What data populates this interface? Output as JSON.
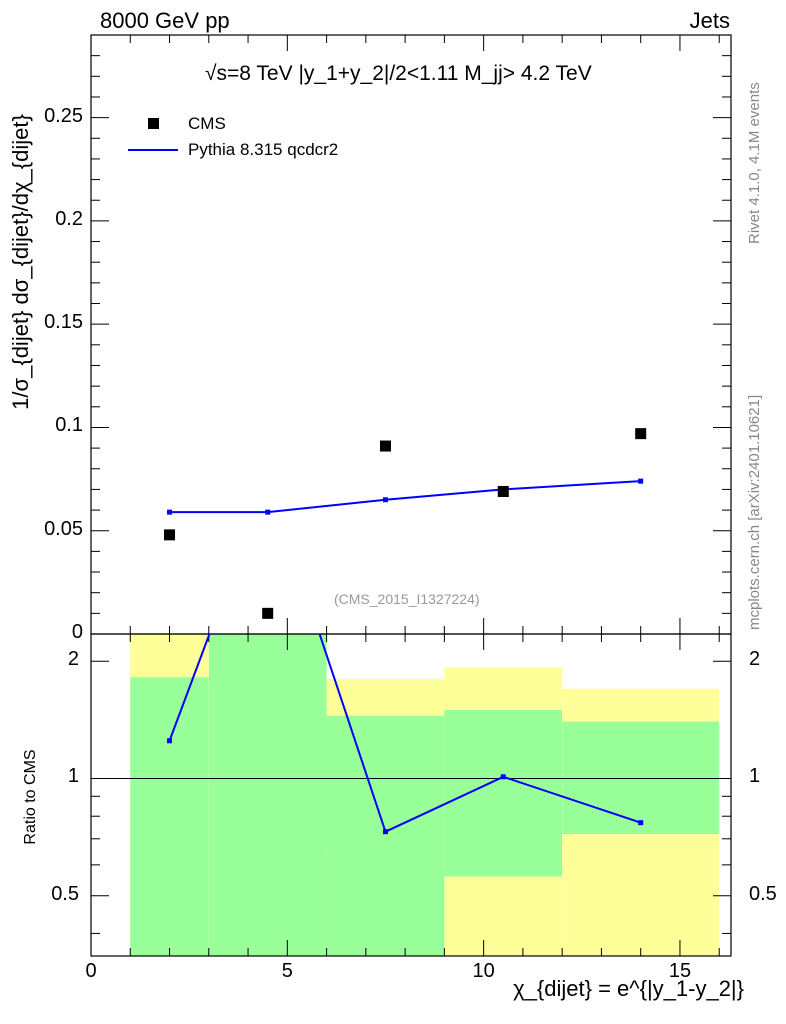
{
  "header": {
    "energy_label": "8000 GeV pp",
    "process_label": "Jets"
  },
  "side_labels": {
    "rivet": "Rivet 4.1.0,  4.1M events",
    "mcplots": "mcplots.cern.ch [arXiv:2401.10621]"
  },
  "plot_title": "√s=8 TeV |y_1+y_2|/2<1.11 M_jj> 4.2 TeV",
  "analysis_label": "(CMS_2015_I1327224)",
  "legend": [
    {
      "name": "CMS",
      "marker": "square",
      "color": "#000000"
    },
    {
      "name": "Pythia 8.315 qcdcr2",
      "marker": "line",
      "color": "#0000ff"
    }
  ],
  "chart_data": [
    {
      "type": "scatter",
      "panel": "main",
      "ylabel": "1/σ_{dijet} dσ_{dijet}/dχ_{dijet}",
      "xlim": [
        0,
        16.3
      ],
      "ylim": [
        0,
        0.29
      ],
      "yticks": [
        0,
        0.05,
        0.1,
        0.15,
        0.2,
        0.25
      ],
      "ytick_labels": [
        "0",
        "0.05",
        "0.1",
        "0.15",
        "0.2",
        "0.25"
      ],
      "series": [
        {
          "name": "CMS",
          "x": [
            2.0,
            4.5,
            7.5,
            10.5,
            14.0
          ],
          "values": [
            0.048,
            0.01,
            0.091,
            0.069,
            0.097
          ]
        },
        {
          "name": "Pythia 8.315 qcdcr2",
          "x": [
            2.0,
            4.5,
            7.5,
            10.5,
            14.0
          ],
          "values": [
            0.059,
            0.059,
            0.065,
            0.07,
            0.074
          ]
        }
      ]
    },
    {
      "type": "line",
      "panel": "ratio",
      "ylabel": "Ratio to CMS",
      "xlabel": "χ_{dijet} = e^{|y_1-y_2|}",
      "xlim": [
        0,
        16.3
      ],
      "ylim": [
        0.35,
        2.35
      ],
      "yscale": "log",
      "yticks": [
        0.5,
        1,
        2
      ],
      "ytick_labels": [
        "0.5",
        "1",
        "2"
      ],
      "xticks": [
        0,
        5,
        10,
        15
      ],
      "xtick_labels": [
        "0",
        "5",
        "10",
        "15"
      ],
      "bands": [
        {
          "x0": 1,
          "x1": 3,
          "inner": [
            0.1,
            1.82
          ],
          "outer": [
            0.1,
            2.35
          ]
        },
        {
          "x0": 3,
          "x1": 6,
          "inner": [
            0.1,
            2.35
          ],
          "outer": [
            0.1,
            2.35
          ]
        },
        {
          "x0": 6,
          "x1": 9,
          "inner": [
            0.1,
            1.45
          ],
          "outer": [
            0.65,
            1.8
          ]
        },
        {
          "x0": 9,
          "x1": 12,
          "inner": [
            0.56,
            1.5
          ],
          "outer": [
            0.1,
            1.93
          ]
        },
        {
          "x0": 12,
          "x1": 16,
          "inner": [
            0.72,
            1.4
          ],
          "outer": [
            0.1,
            1.7
          ]
        }
      ],
      "series": [
        {
          "name": "Pythia 8.315 qcdcr2 / CMS",
          "x": [
            2.0,
            4.5,
            7.5,
            10.5,
            14.0
          ],
          "values": [
            1.25,
            5.9,
            0.73,
            1.01,
            0.77
          ]
        }
      ]
    }
  ]
}
